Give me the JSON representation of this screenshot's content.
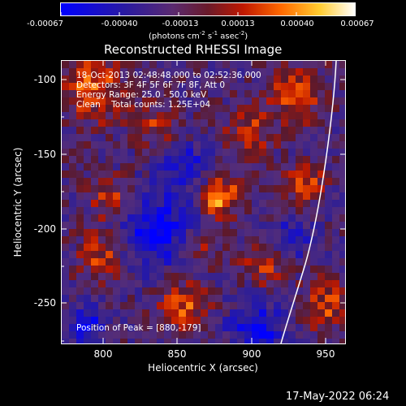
{
  "colorbar": {
    "tick_labels": [
      "-0.00067",
      "-0.00040",
      "-0.00013",
      "0.00013",
      "0.00040",
      "0.00067"
    ],
    "unit": {
      "main": "(photons cm",
      "exp1": "-2",
      "mid1": " s",
      "exp2": "-1",
      "mid2": " asec",
      "exp3": "-2",
      "end": ")"
    },
    "colors": [
      "#0000ff",
      "#4a2a8a",
      "#5a2a55",
      "#7a1010",
      "#d02000",
      "#ff7a00",
      "#ffcc44",
      "#ffffff"
    ]
  },
  "chart_data": {
    "type": "heatmap",
    "title": "Reconstructed RHESSI Image",
    "xlabel": "Heliocentric X (arcsec)",
    "ylabel": "Heliocentric Y (arcsec)",
    "x_ticks": [
      "800",
      "850",
      "900",
      "950"
    ],
    "y_ticks": [
      "-100",
      "-150",
      "-200",
      "-250"
    ],
    "xlim": [
      770,
      963
    ],
    "ylim": [
      -278,
      -87
    ],
    "colorbar_range": [
      -0.00067,
      0.00067
    ],
    "peak": [
      880,
      -179
    ]
  },
  "annotations": {
    "time_range": "18-Oct-2013 02:48:48.000 to 02:52:36.000",
    "detectors": "Detectors: 3F 4F 5F 6F 7F 8F, Att 0",
    "energy": "Energy Range: 25.0 - 50.0 keV",
    "method": "Clean    Total counts: 1.25E+04",
    "peak": "Position of Peak = [880,-179]"
  },
  "footer": {
    "timestamp": "17-May-2022 06:24"
  }
}
